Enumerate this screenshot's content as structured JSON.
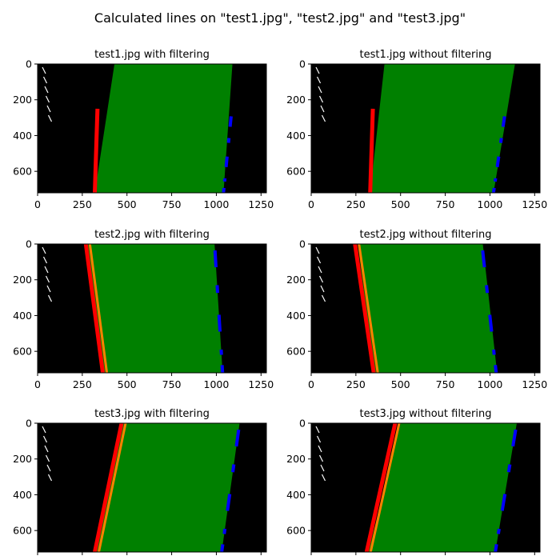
{
  "figure": {
    "title": "Calculated lines on \"test1.jpg\", \"test2.jpg\" and \"test3.jpg\""
  },
  "chart_data": [
    {
      "type": "image",
      "title": "test1.jpg with filtering",
      "xlim": [
        0,
        1280
      ],
      "ylim": [
        720,
        0
      ],
      "xticks": [
        0,
        250,
        500,
        750,
        1000,
        1250
      ],
      "yticks": [
        0,
        200,
        400,
        600
      ],
      "colors": {
        "background": "#000000",
        "lane_fill": "#008000",
        "left_pixels": "#ff0000",
        "right_pixels": "#0000ff",
        "raw_pixels": "#ffffff"
      },
      "lane": {
        "left_x_top": 430,
        "left_x_bottom": 320,
        "right_x_top": 1090,
        "right_x_bottom": 1040
      },
      "left_points": [
        [
          335,
          250
        ],
        [
          320,
          720
        ]
      ],
      "right_points": [
        [
          1085,
          270
        ],
        [
          1040,
          720
        ]
      ]
    },
    {
      "type": "image",
      "title": "test1.jpg without filtering",
      "xlim": [
        0,
        1280
      ],
      "ylim": [
        720,
        0
      ],
      "xticks": [
        0,
        250,
        500,
        750,
        1000,
        1250
      ],
      "yticks": [
        0,
        200,
        400,
        600
      ],
      "colors": {
        "background": "#000000",
        "lane_fill": "#008000",
        "left_pixels": "#ff0000",
        "right_pixels": "#0000ff",
        "raw_pixels": "#ffffff"
      },
      "lane": {
        "left_x_top": 410,
        "left_x_bottom": 330,
        "right_x_top": 1140,
        "right_x_bottom": 1020
      },
      "left_points": [
        [
          345,
          250
        ],
        [
          330,
          720
        ]
      ],
      "right_points": [
        [
          1085,
          270
        ],
        [
          1020,
          720
        ]
      ]
    },
    {
      "type": "image",
      "title": "test2.jpg with filtering",
      "xlim": [
        0,
        1280
      ],
      "ylim": [
        720,
        0
      ],
      "xticks": [
        0,
        250,
        500,
        750,
        1000,
        1250
      ],
      "yticks": [
        0,
        200,
        400,
        600
      ],
      "colors": {
        "background": "#000000",
        "lane_fill": "#008000",
        "left_pixels": "#ff0000",
        "left_pixels_alt": "#ff8000",
        "right_pixels": "#0000ff",
        "raw_pixels": "#ffffff"
      },
      "lane": {
        "left_x_top": 270,
        "left_x_bottom": 370,
        "right_x_top": 990,
        "right_x_bottom": 1035
      },
      "left_points": [
        [
          270,
          0
        ],
        [
          365,
          720
        ]
      ],
      "right_points": [
        [
          990,
          0
        ],
        [
          1035,
          720
        ]
      ]
    },
    {
      "type": "image",
      "title": "test2.jpg without filtering",
      "xlim": [
        0,
        1280
      ],
      "ylim": [
        720,
        0
      ],
      "xticks": [
        0,
        250,
        500,
        750,
        1000,
        1250
      ],
      "yticks": [
        0,
        200,
        400,
        600
      ],
      "colors": {
        "background": "#000000",
        "lane_fill": "#008000",
        "left_pixels": "#ff0000",
        "left_pixels_alt": "#ff8000",
        "right_pixels": "#0000ff",
        "raw_pixels": "#ffffff"
      },
      "lane": {
        "left_x_top": 260,
        "left_x_bottom": 355,
        "right_x_top": 960,
        "right_x_bottom": 1040
      },
      "left_points": [
        [
          245,
          0
        ],
        [
          350,
          720
        ]
      ],
      "right_points": [
        [
          955,
          0
        ],
        [
          1035,
          720
        ]
      ]
    },
    {
      "type": "image",
      "title": "test3.jpg with filtering",
      "xlim": [
        0,
        1280
      ],
      "ylim": [
        720,
        0
      ],
      "xticks": [],
      "yticks": [
        0,
        200,
        400,
        600
      ],
      "colors": {
        "background": "#000000",
        "lane_fill": "#008000",
        "left_pixels": "#ff0000",
        "left_pixels_alt": "#ff8000",
        "right_pixels": "#0000ff",
        "raw_pixels": "#ffffff"
      },
      "lane": {
        "left_x_top": 470,
        "left_x_bottom": 320,
        "right_x_top": 1130,
        "right_x_bottom": 1030
      },
      "left_points": [
        [
          470,
          0
        ],
        [
          320,
          720
        ]
      ],
      "right_points": [
        [
          1130,
          0
        ],
        [
          1030,
          720
        ]
      ]
    },
    {
      "type": "image",
      "title": "test3.jpg without filtering",
      "xlim": [
        0,
        1280
      ],
      "ylim": [
        720,
        0
      ],
      "xticks": [],
      "yticks": [
        0,
        200,
        400,
        600
      ],
      "colors": {
        "background": "#000000",
        "lane_fill": "#008000",
        "left_pixels": "#ff0000",
        "left_pixels_alt": "#ff8000",
        "right_pixels": "#0000ff",
        "raw_pixels": "#ffffff"
      },
      "lane": {
        "left_x_top": 500,
        "left_x_bottom": 320,
        "right_x_top": 1150,
        "right_x_bottom": 1030
      },
      "left_points": [
        [
          470,
          0
        ],
        [
          310,
          720
        ]
      ],
      "right_points": [
        [
          1150,
          0
        ],
        [
          1030,
          720
        ]
      ]
    }
  ]
}
